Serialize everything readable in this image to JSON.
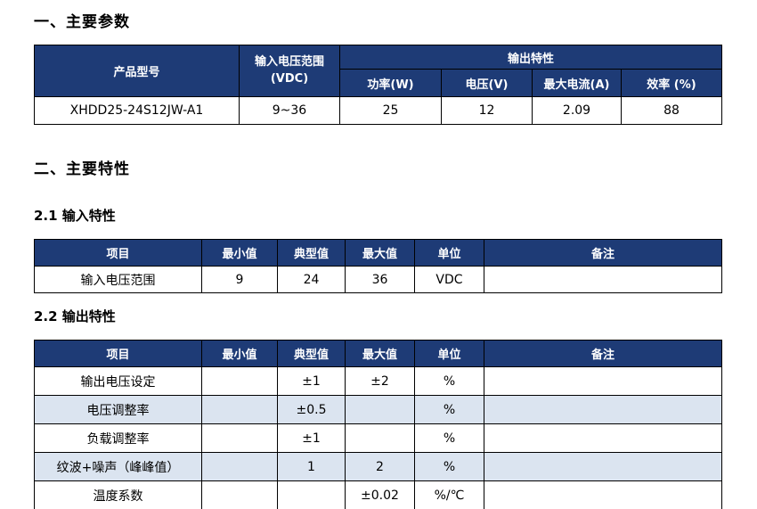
{
  "colors": {
    "header_navy": "#1e3b76",
    "alt_row_blue": "#dbe4f0",
    "border_black": "#000000"
  },
  "page": {
    "section1_title": "一、主要参数",
    "section2_title": "二、主要特性",
    "section21_title": "2.1 输入特性",
    "section22_title": "2.2 输出特性"
  },
  "main_params_table": {
    "headers": {
      "product_model": "产品型号",
      "input_voltage_range_line1": "输入电压范围",
      "input_voltage_range_line2": "(VDC)",
      "output_characteristics": "输出特性",
      "power": "功率(W)",
      "voltage": "电压(V)",
      "max_current": "最大电流(A)",
      "efficiency": "效率 (%)"
    },
    "row": {
      "model": "XHDD25-24S12JW-A1",
      "input_range": "9~36",
      "power": "25",
      "voltage": "12",
      "max_current": "2.09",
      "efficiency": "88"
    }
  },
  "input_characteristics_table": {
    "headers": {
      "item": "项目",
      "min": "最小值",
      "typ": "典型值",
      "max": "最大值",
      "unit": "单位",
      "note": "备注"
    },
    "rows": [
      {
        "item": "输入电压范围",
        "min": "9",
        "typ": "24",
        "max": "36",
        "unit": "VDC",
        "note": ""
      }
    ]
  },
  "output_characteristics_table": {
    "headers": {
      "item": "项目",
      "min": "最小值",
      "typ": "典型值",
      "max": "最大值",
      "unit": "单位",
      "note": "备注"
    },
    "rows": [
      {
        "item": "输出电压设定",
        "min": "",
        "typ": "±1",
        "max": "±2",
        "unit": "%",
        "note": ""
      },
      {
        "item": "电压调整率",
        "min": "",
        "typ": "±0.5",
        "max": "",
        "unit": "%",
        "note": ""
      },
      {
        "item": "负载调整率",
        "min": "",
        "typ": "±1",
        "max": "",
        "unit": "%",
        "note": ""
      },
      {
        "item": "纹波+噪声（峰峰值）",
        "min": "",
        "typ": "1",
        "max": "2",
        "unit": "%",
        "note": ""
      },
      {
        "item": "温度系数",
        "min": "",
        "typ": "",
        "max": "±0.02",
        "unit": "%/℃",
        "note": ""
      }
    ]
  }
}
